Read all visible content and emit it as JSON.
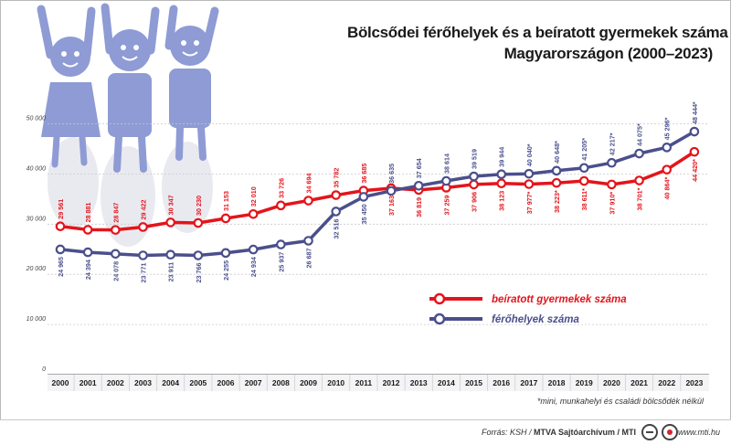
{
  "title_line1": "Bölcsődei férőhelyek és a beíratott gyermekek száma",
  "title_line2": "Magyarországon (2000–2023)",
  "footnote": "*mini, munkahelyi és családi bölcsődék nélkül",
  "source_prefix": "Forrás: KSH / ",
  "source_bold": "MTVA Sajtóarchívum / MTI",
  "site": "www.mti.hu",
  "colors": {
    "enrolled": "#e4141b",
    "places": "#4a4f8c",
    "grid": "#c9c9c9",
    "axis": "#555555",
    "kids": "#8e9bd4"
  },
  "chart_data": {
    "type": "line",
    "x": [
      "2000",
      "2001",
      "2002",
      "2003",
      "2004",
      "2005",
      "2006",
      "2007",
      "2008",
      "2009",
      "2010",
      "2011",
      "2012",
      "2013",
      "2014",
      "2015",
      "2016",
      "2017",
      "2018",
      "2019",
      "2020",
      "2021",
      "2022",
      "2023"
    ],
    "yticks": [
      "0",
      "10 000",
      "20 000",
      "30 000",
      "40 000",
      "50 000"
    ],
    "ylim": [
      0,
      50000
    ],
    "grid": true,
    "legend_position": "center-right",
    "series": [
      {
        "name": "beíratott gyermekek száma",
        "values": [
          29561,
          28881,
          28847,
          29422,
          30347,
          30230,
          31153,
          32010,
          33726,
          34694,
          35782,
          36685,
          37163,
          36819,
          37259,
          37906,
          38123,
          37977,
          38223,
          38611,
          37910,
          38701,
          40864,
          44420
        ],
        "labels": [
          "29 561",
          "28 881",
          "28 847",
          "29 422",
          "30 347",
          "30 230",
          "31 153",
          "32 010",
          "33 726",
          "34 694",
          "35 782",
          "36 685",
          "37 163",
          "36 819",
          "37 259",
          "37 906",
          "38 123",
          "37 977*",
          "38 223*",
          "38 611*",
          "37 910*",
          "38 701*",
          "40 864*",
          "44 420*"
        ]
      },
      {
        "name": "férőhelyek száma",
        "values": [
          24965,
          24394,
          24078,
          23771,
          23911,
          23766,
          24255,
          24934,
          25937,
          26687,
          32516,
          35450,
          36635,
          37654,
          38614,
          39519,
          39944,
          40040,
          40648,
          41205,
          42217,
          44075,
          45296,
          48444
        ],
        "labels": [
          "24 965",
          "24 394",
          "24 078",
          "23 771",
          "23 911",
          "23 766",
          "24 255",
          "24 934",
          "25 937",
          "26 687",
          "32 516",
          "35 450",
          "36 635",
          "37 654",
          "38 614",
          "39 519",
          "39 944",
          "40 040*",
          "40 648*",
          "41 205*",
          "42 217*",
          "44 075*",
          "45 296*",
          "48 444*"
        ]
      }
    ]
  }
}
